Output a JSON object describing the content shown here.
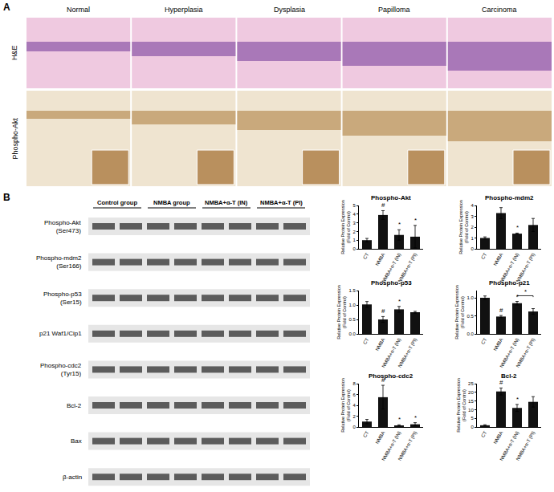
{
  "panel_a": {
    "label": "A",
    "columns": [
      "Normal",
      "Hyperplasia",
      "Dysplasia",
      "Papilloma",
      "Carcinoma"
    ],
    "rows": [
      "H&E",
      "Phospho-Akt"
    ]
  },
  "panel_b_label": "B",
  "blot": {
    "groups": [
      "Control group",
      "NMBA group",
      "NMBA+α-T (IN)",
      "NMBA+α-T (PI)"
    ],
    "proteins": [
      [
        "Phospho-Akt",
        "(Ser473)"
      ],
      [
        "Phospho-mdm2",
        "(Ser166)"
      ],
      [
        "Phospho-p53",
        "(Ser15)"
      ],
      [
        "p21 Waf1/Cip1"
      ],
      [
        "Phospho-cdc2",
        "(Tyr15)"
      ],
      [
        "Bcl-2"
      ],
      [
        "Bax"
      ],
      [
        "β-actin"
      ]
    ]
  },
  "chart_data": [
    {
      "type": "bar",
      "title": "Phospho-Akt",
      "ylabel": [
        "Relative Protein Expression",
        "(Fold of Control)"
      ],
      "categories": [
        "CT",
        "NMBA",
        "NMBA+α-T (IN)",
        "NMBA+α-T (PI)"
      ],
      "values": [
        1.0,
        3.9,
        1.6,
        1.4
      ],
      "errors": [
        0.2,
        0.5,
        0.6,
        1.3
      ],
      "color": "#111111",
      "ylim": [
        0,
        5
      ],
      "yticks": [
        0,
        1,
        2,
        3,
        4,
        5
      ],
      "annotations": [
        {
          "category": "NMBA",
          "text": "#"
        },
        {
          "category": "NMBA+α-T (IN)",
          "text": "*"
        },
        {
          "category": "NMBA+α-T (PI)",
          "text": "*"
        }
      ]
    },
    {
      "type": "bar",
      "title": "Phospho-mdm2",
      "ylabel": [
        "Relative Protein Expression",
        "(Fold of Control)"
      ],
      "categories": [
        "CT",
        "NMBA",
        "NMBA+α-T (IN)",
        "NMBA+α-T (PI)"
      ],
      "values": [
        1.0,
        3.3,
        1.4,
        2.2
      ],
      "errors": [
        0.1,
        0.5,
        0.05,
        0.6
      ],
      "color": "#111111",
      "ylim": [
        0,
        4
      ],
      "yticks": [
        0,
        1,
        2,
        3,
        4
      ],
      "annotations": [
        {
          "category": "NMBA+α-T (IN)",
          "text": "*"
        }
      ]
    },
    {
      "type": "bar",
      "title": "Phospho-p53",
      "ylabel": [
        "Relative Protein Expression",
        "(Fold of Control)"
      ],
      "categories": [
        "CT",
        "NMBA",
        "NMBA+α-T (IN)",
        "NMBA+α-T (PI)"
      ],
      "values": [
        1.02,
        0.5,
        0.85,
        0.75
      ],
      "errors": [
        0.1,
        0.1,
        0.1,
        0.03
      ],
      "color": "#111111",
      "ylim": [
        0,
        1.5
      ],
      "yticks": [
        {
          "value": 0,
          "label": "0.0"
        },
        0.5,
        {
          "value": 1,
          "label": "1.0"
        },
        1.5
      ],
      "annotations": [
        {
          "category": "NMBA",
          "text": "#"
        },
        {
          "category": "NMBA+α-T (IN)",
          "text": "*"
        }
      ]
    },
    {
      "type": "bar",
      "title": "Phospho-p21",
      "ylabel": [
        "Relative Protein Expression",
        "(Fold of Control)"
      ],
      "categories": [
        "CT",
        "NMBA",
        "NMBA+α-T (IN)",
        "NMBA+α-T (PI)"
      ],
      "values": [
        1.0,
        0.48,
        0.85,
        0.62
      ],
      "errors": [
        0.05,
        0.03,
        0.05,
        0.08
      ],
      "color": "#111111",
      "ylim": [
        0,
        1.2
      ],
      "yticks": [
        {
          "value": 0,
          "label": "0.0"
        },
        0.5,
        {
          "value": 1,
          "label": "1.0"
        }
      ],
      "annotations": [
        {
          "category": "NMBA",
          "text": "#"
        },
        {
          "category": "NMBA+α-T (IN)",
          "text": "*"
        }
      ],
      "brackets": [
        {
          "from": "NMBA+α-T (IN)",
          "to": "NMBA+α-T (PI)",
          "text": "*"
        }
      ]
    },
    {
      "type": "bar",
      "title": "Phospho-cdc2",
      "ylabel": [
        "Relative Protein Expression",
        "(Fold of Control)"
      ],
      "categories": [
        "CT",
        "NMBA",
        "NMBA+α-T (IN)",
        "NMBA+α-T (PI)"
      ],
      "values": [
        1.0,
        5.5,
        0.3,
        0.5
      ],
      "errors": [
        0.4,
        2.2,
        0.1,
        0.3
      ],
      "color": "#111111",
      "ylim": [
        0,
        8
      ],
      "yticks": [
        0,
        2,
        4,
        6,
        8
      ],
      "annotations": [
        {
          "category": "NMBA",
          "text": "#"
        },
        {
          "category": "NMBA+α-T (IN)",
          "text": "*"
        },
        {
          "category": "NMBA+α-T (PI)",
          "text": "*"
        }
      ]
    },
    {
      "type": "bar",
      "title": "Bcl-2",
      "ylabel": [
        "Relative Protein Expression",
        "(Fold of Control)"
      ],
      "categories": [
        "CT",
        "NMBA",
        "NMBA+α-T (IN)",
        "NMBA+α-T (PI)"
      ],
      "values": [
        1.0,
        20.5,
        11.0,
        14.5
      ],
      "errors": [
        0.3,
        2.0,
        2.0,
        3.0
      ],
      "color": "#111111",
      "ylim": [
        0,
        25
      ],
      "yticks": [
        0,
        5,
        10,
        15,
        20,
        25
      ],
      "annotations": [
        {
          "category": "NMBA",
          "text": "#"
        },
        {
          "category": "NMBA+α-T (IN)",
          "text": "*"
        }
      ]
    }
  ]
}
